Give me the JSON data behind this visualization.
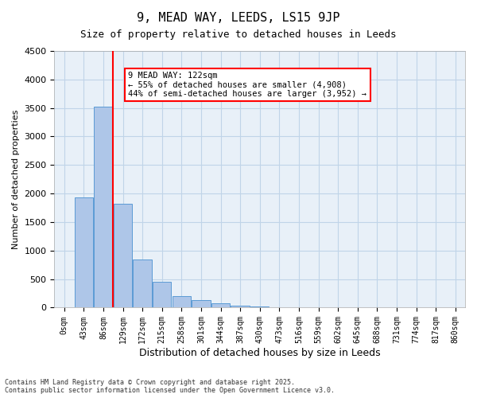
{
  "title_line1": "9, MEAD WAY, LEEDS, LS15 9JP",
  "title_line2": "Size of property relative to detached houses in Leeds",
  "xlabel": "Distribution of detached houses by size in Leeds",
  "ylabel": "Number of detached properties",
  "bar_labels": [
    "0sqm",
    "43sqm",
    "86sqm",
    "129sqm",
    "172sqm",
    "215sqm",
    "258sqm",
    "301sqm",
    "344sqm",
    "387sqm",
    "430sqm",
    "473sqm",
    "516sqm",
    "559sqm",
    "602sqm",
    "645sqm",
    "688sqm",
    "731sqm",
    "774sqm",
    "817sqm",
    "860sqm"
  ],
  "bar_values": [
    0,
    1930,
    3520,
    1820,
    840,
    450,
    200,
    130,
    80,
    35,
    20,
    0,
    0,
    0,
    0,
    0,
    0,
    0,
    0,
    0,
    0
  ],
  "bar_color": "#aec6e8",
  "bar_edge_color": "#5b9bd5",
  "vline_x": 3,
  "vline_color": "red",
  "annotation_text": "9 MEAD WAY: 122sqm\n← 55% of detached houses are smaller (4,908)\n44% of semi-detached houses are larger (3,952) →",
  "annotation_box_color": "red",
  "ylim": [
    0,
    4500
  ],
  "yticks": [
    0,
    500,
    1000,
    1500,
    2000,
    2500,
    3000,
    3500,
    4000,
    4500
  ],
  "grid_color": "#c0d4e8",
  "bg_color": "#e8f0f8",
  "footer_line1": "Contains HM Land Registry data © Crown copyright and database right 2025.",
  "footer_line2": "Contains public sector information licensed under the Open Government Licence v3.0."
}
